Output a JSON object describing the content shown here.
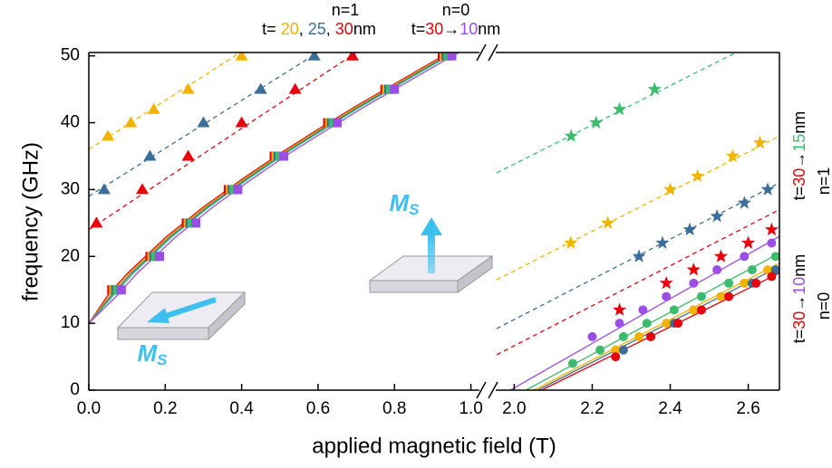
{
  "chart_data": {
    "type": "line",
    "xlabel": "applied magnetic field (T)",
    "ylabel": "frequency (GHz)",
    "ylim": [
      0,
      50.5
    ],
    "yticks": [
      0,
      10,
      20,
      30,
      40,
      50
    ],
    "panels": [
      {
        "xlim": [
          0,
          1.02
        ],
        "xticks": [
          {
            "value": 0,
            "label": "0.0"
          },
          0.2,
          0.4,
          0.6,
          0.8,
          {
            "value": 1,
            "label": "1.0"
          }
        ],
        "series": [
          {
            "color": "#f0b400",
            "marker": "none",
            "line": "dashed",
            "x": [
              0,
              0.41
            ],
            "values": [
              36,
              51
            ]
          },
          {
            "color": "#3b6d99",
            "marker": "none",
            "line": "dashed",
            "x": [
              0,
              0.6
            ],
            "values": [
              29,
              50.5
            ]
          },
          {
            "color": "#e8000b",
            "marker": "none",
            "line": "dashed",
            "x": [
              0,
              0.7
            ],
            "values": [
              24,
              50.5
            ]
          },
          {
            "color": "#f0b400",
            "marker": "triangle",
            "line": "none",
            "x": [
              0.05,
              0.11,
              0.17,
              0.26,
              0.4
            ],
            "values": [
              38,
              40,
              42,
              45,
              50
            ]
          },
          {
            "color": "#3b6d99",
            "marker": "triangle",
            "line": "none",
            "x": [
              0.04,
              0.16,
              0.3,
              0.45,
              0.59
            ],
            "values": [
              30,
              35,
              40,
              45,
              50
            ]
          },
          {
            "color": "#e8000b",
            "marker": "triangle",
            "line": "none",
            "x": [
              0.02,
              0.14,
              0.26,
              0.4,
              0.54,
              0.69
            ],
            "values": [
              25,
              30,
              35,
              40,
              45,
              50
            ]
          },
          {
            "color": "#e8000b",
            "marker": "none",
            "line": "solid",
            "x": [
              0,
              0.05,
              0.1,
              0.2,
              0.3,
              0.4,
              0.5,
              0.6,
              0.7,
              0.8,
              0.9,
              0.96
            ],
            "values": [
              10,
              14.2,
              17.4,
              22.8,
              27.4,
              31.5,
              35.4,
              39,
              42.5,
              45.8,
              49.1,
              51
            ]
          },
          {
            "color": "#f0b400",
            "marker": "none",
            "line": "solid",
            "x": [
              0,
              0.055,
              0.105,
              0.205,
              0.305,
              0.405,
              0.505,
              0.605,
              0.705,
              0.805,
              0.905,
              0.965
            ],
            "values": [
              10,
              14.2,
              17.4,
              22.8,
              27.4,
              31.5,
              35.4,
              39,
              42.5,
              45.8,
              49.1,
              51
            ]
          },
          {
            "color": "#3b6d99",
            "marker": "none",
            "line": "solid",
            "x": [
              0,
              0.06,
              0.11,
              0.21,
              0.31,
              0.41,
              0.51,
              0.61,
              0.71,
              0.81,
              0.91,
              0.97
            ],
            "values": [
              10,
              14.2,
              17.4,
              22.8,
              27.4,
              31.5,
              35.4,
              39,
              42.5,
              45.8,
              49.1,
              51
            ]
          },
          {
            "color": "#3dbb6e",
            "marker": "none",
            "line": "solid",
            "x": [
              0,
              0.065,
              0.115,
              0.215,
              0.315,
              0.415,
              0.515,
              0.615,
              0.715,
              0.815,
              0.915,
              0.975
            ],
            "values": [
              10,
              14.2,
              17.4,
              22.8,
              27.4,
              31.5,
              35.4,
              39,
              42.5,
              45.8,
              49.1,
              51
            ]
          },
          {
            "color": "#9b4de8",
            "marker": "none",
            "line": "solid",
            "x": [
              0,
              0.075,
              0.125,
              0.225,
              0.325,
              0.425,
              0.525,
              0.625,
              0.725,
              0.825,
              0.925,
              0.985
            ],
            "values": [
              10,
              14.2,
              17.4,
              22.8,
              27.4,
              31.5,
              35.4,
              39,
              42.5,
              45.8,
              49.1,
              51
            ]
          },
          {
            "color": "#e8000b",
            "marker": "square",
            "line": "none",
            "x": [
              0.06,
              0.16,
              0.255,
              0.365,
              0.485,
              0.625,
              0.775,
              0.925
            ],
            "values": [
              15,
              20,
              25,
              30,
              35,
              40,
              45,
              50
            ]
          },
          {
            "color": "#f0b400",
            "marker": "square",
            "line": "none",
            "x": [
              0.065,
              0.165,
              0.26,
              0.37,
              0.49,
              0.63,
              0.78,
              0.93
            ],
            "values": [
              15,
              20,
              25,
              30,
              35,
              40,
              45,
              50
            ]
          },
          {
            "color": "#3b6d99",
            "marker": "square",
            "line": "none",
            "x": [
              0.07,
              0.17,
              0.265,
              0.375,
              0.495,
              0.635,
              0.785,
              0.935
            ],
            "values": [
              15,
              20,
              25,
              30,
              35,
              40,
              45,
              50
            ]
          },
          {
            "color": "#3dbb6e",
            "marker": "square",
            "line": "none",
            "x": [
              0.075,
              0.175,
              0.27,
              0.38,
              0.5,
              0.64,
              0.79,
              0.94
            ],
            "values": [
              15,
              20,
              25,
              30,
              35,
              40,
              45,
              50
            ]
          },
          {
            "color": "#9b4de8",
            "marker": "square",
            "line": "none",
            "x": [
              0.085,
              0.185,
              0.28,
              0.39,
              0.51,
              0.65,
              0.8,
              0.95
            ],
            "values": [
              15,
              20,
              25,
              30,
              35,
              40,
              45,
              50
            ]
          }
        ]
      },
      {
        "xlim": [
          1.955,
          2.68
        ],
        "xticks": [
          {
            "value": 2,
            "label": "2.0"
          },
          2.2,
          2.4,
          2.6
        ],
        "series": [
          {
            "color": "#3dbb6e",
            "marker": "none",
            "line": "dashed",
            "x": [
              1.955,
              2.62
            ],
            "values": [
              32.5,
              52
            ]
          },
          {
            "color": "#f0b400",
            "marker": "none",
            "line": "dashed",
            "x": [
              1.955,
              2.68
            ],
            "values": [
              16.5,
              38
            ]
          },
          {
            "color": "#3b6d99",
            "marker": "none",
            "line": "dashed",
            "x": [
              1.955,
              2.68
            ],
            "values": [
              9.2,
              31
            ]
          },
          {
            "color": "#e8000b",
            "marker": "none",
            "line": "dashed",
            "x": [
              1.955,
              2.68
            ],
            "values": [
              5.3,
              27
            ]
          },
          {
            "color": "#3dbb6e",
            "marker": "star",
            "line": "none",
            "x": [
              2.146,
              2.21,
              2.27,
              2.36
            ],
            "values": [
              38,
              40,
              42,
              45
            ]
          },
          {
            "color": "#f0b400",
            "marker": "star",
            "line": "none",
            "x": [
              2.145,
              2.24,
              2.4,
              2.47,
              2.56,
              2.63
            ],
            "values": [
              22,
              25,
              30,
              32,
              35,
              37
            ]
          },
          {
            "color": "#3b6d99",
            "marker": "star",
            "line": "none",
            "x": [
              2.32,
              2.38,
              2.45,
              2.52,
              2.59,
              2.65
            ],
            "values": [
              20,
              22,
              24,
              26,
              28,
              30
            ]
          },
          {
            "color": "#e8000b",
            "marker": "star",
            "line": "none",
            "x": [
              2.27,
              2.39,
              2.46,
              2.53,
              2.6,
              2.66
            ],
            "values": [
              12,
              16,
              18,
              20,
              22,
              24
            ]
          },
          {
            "color": "#9b4de8",
            "marker": "none",
            "line": "solid",
            "x": [
              1.99,
              2.68
            ],
            "values": [
              0,
              23
            ]
          },
          {
            "color": "#3dbb6e",
            "marker": "none",
            "line": "solid",
            "x": [
              2.03,
              2.68
            ],
            "values": [
              0,
              20.5
            ]
          },
          {
            "color": "#f0b400",
            "marker": "none",
            "line": "solid",
            "x": [
              2.05,
              2.68
            ],
            "values": [
              0,
              19
            ]
          },
          {
            "color": "#3b6d99",
            "marker": "none",
            "line": "solid",
            "x": [
              2.06,
              2.68
            ],
            "values": [
              0,
              18.5
            ]
          },
          {
            "color": "#e8000b",
            "marker": "none",
            "line": "solid",
            "x": [
              2.07,
              2.68
            ],
            "values": [
              0,
              17.5
            ]
          },
          {
            "color": "#9b4de8",
            "marker": "circle",
            "line": "none",
            "x": [
              2.2,
              2.27,
              2.33,
              2.39,
              2.46,
              2.52,
              2.59,
              2.66
            ],
            "values": [
              8,
              10,
              12,
              14,
              16,
              18,
              20,
              22
            ]
          },
          {
            "color": "#3dbb6e",
            "marker": "circle",
            "line": "none",
            "x": [
              2.15,
              2.22,
              2.28,
              2.34,
              2.41,
              2.48,
              2.55,
              2.61,
              2.67
            ],
            "values": [
              4,
              6,
              8,
              10,
              12,
              14,
              16,
              18,
              20
            ]
          },
          {
            "color": "#f0b400",
            "marker": "circle",
            "line": "none",
            "x": [
              2.26,
              2.32,
              2.39,
              2.46,
              2.53,
              2.59,
              2.65
            ],
            "values": [
              6,
              8,
              10,
              12,
              14,
              16,
              18
            ]
          },
          {
            "color": "#3b6d99",
            "marker": "circle",
            "line": "none",
            "x": [
              2.28,
              2.35,
              2.41,
              2.48,
              2.55,
              2.61,
              2.67
            ],
            "values": [
              6,
              8,
              10,
              12,
              14,
              16,
              18
            ]
          },
          {
            "color": "#e8000b",
            "marker": "circle",
            "line": "none",
            "x": [
              2.26,
              2.35,
              2.42,
              2.48,
              2.55,
              2.62,
              2.66
            ],
            "values": [
              5,
              8,
              10,
              12,
              14,
              16,
              17
            ]
          }
        ]
      }
    ],
    "annotations": [
      {
        "parts": [
          {
            "text": "n=1",
            "color": "#000000"
          }
        ]
      },
      {
        "parts": [
          {
            "text": "t= ",
            "color": "#000000"
          },
          {
            "text": "20",
            "color": "#f0b400"
          },
          {
            "text": ",  ",
            "color": "#000000"
          },
          {
            "text": "25",
            "color": "#3b6d99"
          },
          {
            "text": ", ",
            "color": "#000000"
          },
          {
            "text": "30",
            "color": "#e8000b"
          },
          {
            "text": "nm",
            "color": "#000000"
          }
        ]
      },
      {
        "parts": [
          {
            "text": "n=0",
            "color": "#000000"
          }
        ]
      },
      {
        "parts": [
          {
            "text": "t=",
            "color": "#000000"
          },
          {
            "text": "30",
            "color": "#e8000b"
          },
          {
            "text": "→",
            "color": "#000000"
          },
          {
            "text": "10",
            "color": "#9b4de8"
          },
          {
            "text": "nm",
            "color": "#000000"
          }
        ]
      },
      {
        "parts": [
          {
            "text": "t=",
            "color": "#000000"
          },
          {
            "text": "30",
            "color": "#e8000b"
          },
          {
            "text": "→",
            "color": "#000000"
          },
          {
            "text": "15",
            "color": "#3dbb6e"
          },
          {
            "text": "nm",
            "color": "#000000"
          }
        ]
      },
      {
        "parts": [
          {
            "text": "n=1",
            "color": "#000000"
          }
        ]
      },
      {
        "parts": [
          {
            "text": "t=",
            "color": "#000000"
          },
          {
            "text": "30",
            "color": "#e8000b"
          },
          {
            "text": "→",
            "color": "#000000"
          },
          {
            "text": "10",
            "color": "#9b4de8"
          },
          {
            "text": "nm",
            "color": "#000000"
          }
        ]
      },
      {
        "parts": [
          {
            "text": "n=0",
            "color": "#000000"
          }
        ]
      },
      {
        "parts": [
          {
            "text": "M",
            "color": "#3cc0f0"
          },
          {
            "text": "S",
            "color": "#3cc0f0"
          }
        ]
      },
      {
        "parts": [
          {
            "text": "M",
            "color": "#3cc0f0"
          },
          {
            "text": "S",
            "color": "#3cc0f0"
          }
        ]
      }
    ]
  }
}
